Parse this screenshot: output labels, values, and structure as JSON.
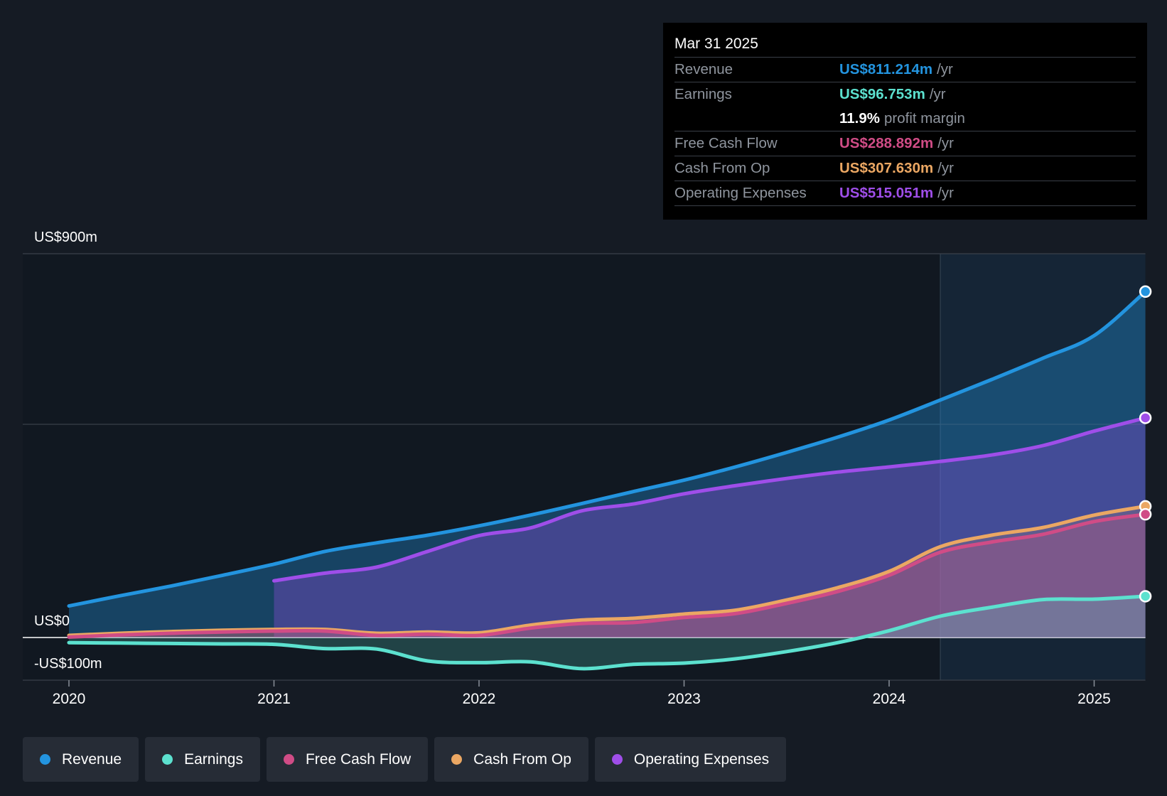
{
  "tooltip": {
    "date": "Mar 31 2025",
    "rows": [
      {
        "name": "Revenue",
        "value": "US$811.214m",
        "unit": "/yr",
        "color": "#2394df"
      },
      {
        "name": "Earnings",
        "value": "US$96.753m",
        "unit": "/yr",
        "color": "#5ce1cf"
      },
      {
        "name": "",
        "value": "11.9%",
        "unit": "profit margin",
        "color": "#ffffff"
      },
      {
        "name": "Free Cash Flow",
        "value": "US$288.892m",
        "unit": "/yr",
        "color": "#d04c86"
      },
      {
        "name": "Cash From Op",
        "value": "US$307.630m",
        "unit": "/yr",
        "color": "#eba763"
      },
      {
        "name": "Operating Expenses",
        "value": "US$515.051m",
        "unit": "/yr",
        "color": "#9f4ee9"
      }
    ]
  },
  "legend": [
    {
      "label": "Revenue",
      "color": "#2394df"
    },
    {
      "label": "Earnings",
      "color": "#5ce1cf"
    },
    {
      "label": "Free Cash Flow",
      "color": "#d04c86"
    },
    {
      "label": "Cash From Op",
      "color": "#eba763"
    },
    {
      "label": "Operating Expenses",
      "color": "#9f4ee9"
    }
  ],
  "chart_data": {
    "type": "area",
    "y_labels": {
      "top": "US$900m",
      "zero": "US$0",
      "bottom": "-US$100m"
    },
    "ylim": [
      -100,
      900
    ],
    "xlim": [
      2020,
      2025.25
    ],
    "x_ticks": [
      2020,
      2021,
      2022,
      2023,
      2024,
      2025
    ],
    "x_tick_labels": [
      "2020",
      "2021",
      "2022",
      "2023",
      "2024",
      "2025"
    ],
    "forecast_start": 2024.25,
    "series": [
      {
        "name": "Revenue",
        "color": "#2394df",
        "x": [
          2020,
          2020.25,
          2020.5,
          2020.75,
          2021,
          2021.25,
          2021.5,
          2021.75,
          2022,
          2022.25,
          2022.5,
          2022.75,
          2023,
          2023.25,
          2023.5,
          2023.75,
          2024,
          2024.25,
          2024.5,
          2024.75,
          2025,
          2025.25
        ],
        "values": [
          74,
          98,
          121,
          146,
          172,
          202,
          222,
          240,
          262,
          287,
          314,
          342,
          369,
          400,
          434,
          470,
          510,
          557,
          605,
          655,
          708,
          811.214
        ]
      },
      {
        "name": "Operating Expenses",
        "color": "#9f4ee9",
        "x": [
          2021,
          2021.25,
          2021.5,
          2021.75,
          2022,
          2022.25,
          2022.5,
          2022.75,
          2023,
          2023.25,
          2023.5,
          2023.75,
          2024,
          2024.25,
          2024.5,
          2024.75,
          2025,
          2025.25
        ],
        "values": [
          133,
          151,
          165,
          202,
          239,
          257,
          297,
          313,
          337,
          356,
          373,
          388,
          400,
          413,
          428,
          450,
          484,
          515.051
        ]
      },
      {
        "name": "Cash From Op",
        "color": "#eba763",
        "x": [
          2020,
          2020.25,
          2020.5,
          2020.75,
          2021,
          2021.25,
          2021.5,
          2021.75,
          2022,
          2022.25,
          2022.5,
          2022.75,
          2023,
          2023.25,
          2023.5,
          2023.75,
          2024,
          2024.25,
          2024.5,
          2024.75,
          2025,
          2025.25
        ],
        "values": [
          5,
          10,
          14,
          17,
          19,
          19,
          10,
          13,
          11,
          29,
          41,
          45,
          55,
          64,
          88,
          117,
          155,
          213,
          240,
          258,
          287,
          307.63
        ]
      },
      {
        "name": "Free Cash Flow",
        "color": "#d04c86",
        "x": [
          2020,
          2020.25,
          2020.5,
          2020.75,
          2021,
          2021.25,
          2021.5,
          2021.75,
          2022,
          2022.25,
          2022.5,
          2022.75,
          2023,
          2023.25,
          2023.5,
          2023.75,
          2024,
          2024.25,
          2024.5,
          2024.75,
          2025,
          2025.25
        ],
        "values": [
          1,
          6,
          10,
          13,
          15,
          15,
          5,
          8,
          5,
          22,
          33,
          35,
          47,
          56,
          80,
          108,
          146,
          200,
          224,
          242,
          272,
          288.892
        ]
      },
      {
        "name": "Earnings",
        "color": "#5ce1cf",
        "x": [
          2020,
          2020.25,
          2020.5,
          2020.75,
          2021,
          2021.25,
          2021.5,
          2021.75,
          2022,
          2022.25,
          2022.5,
          2022.75,
          2023,
          2023.25,
          2023.5,
          2023.75,
          2024,
          2024.25,
          2024.5,
          2024.75,
          2025,
          2025.25
        ],
        "values": [
          -12,
          -13,
          -14,
          -15,
          -16,
          -26,
          -27,
          -55,
          -59,
          -57,
          -73,
          -63,
          -60,
          -50,
          -33,
          -12,
          16,
          50,
          71,
          89,
          90,
          96.753
        ]
      }
    ]
  }
}
